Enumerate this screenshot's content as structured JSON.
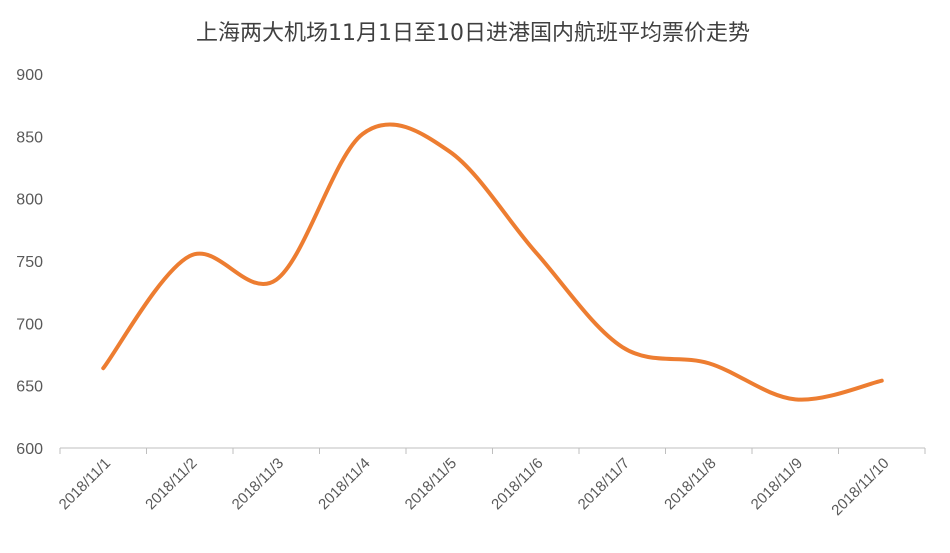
{
  "chart_data": {
    "type": "line",
    "title": "上海两大机场11月1日至10日进港国内航班平均票价走势",
    "xlabel": "",
    "ylabel": "",
    "categories": [
      "2018/11/1",
      "2018/11/2",
      "2018/11/3",
      "2018/11/4",
      "2018/11/5",
      "2018/11/6",
      "2018/11/7",
      "2018/11/8",
      "2018/11/9",
      "2018/11/10"
    ],
    "series": [
      {
        "values": [
          664,
          754,
          735,
          852,
          838,
          757,
          681,
          668,
          639,
          654
        ],
        "color": "#ED7D31"
      }
    ],
    "ylim": [
      600,
      900
    ],
    "yticks": [
      "600",
      "650",
      "700",
      "750",
      "800",
      "850",
      "900"
    ],
    "grid": false,
    "legend": "none",
    "smooth": true
  }
}
